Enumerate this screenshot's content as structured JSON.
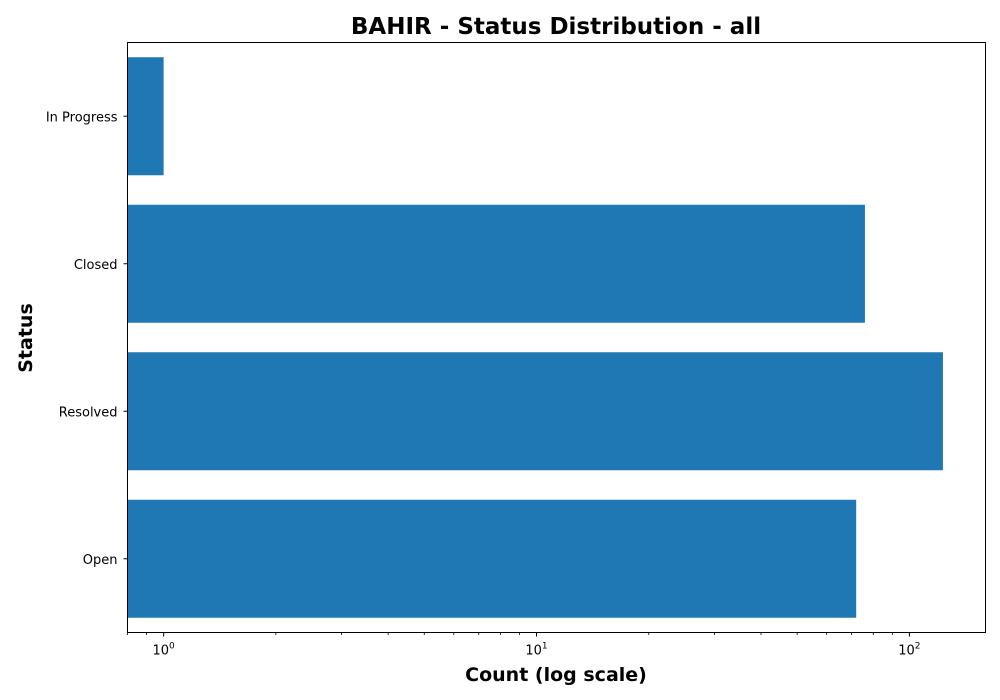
{
  "chart_data": {
    "type": "bar",
    "orientation": "horizontal",
    "title": "BAHIR - Status Distribution - all",
    "xlabel": "Count (log scale)",
    "ylabel": "Status",
    "x_scale": "log",
    "xlim": [
      0.8,
      160
    ],
    "categories": [
      "In Progress",
      "Closed",
      "Resolved",
      "Open"
    ],
    "values": [
      1,
      76,
      123,
      72
    ],
    "x_ticks": [
      {
        "base": "10",
        "exp": "0",
        "value": 1
      },
      {
        "base": "10",
        "exp": "1",
        "value": 10
      },
      {
        "base": "10",
        "exp": "2",
        "value": 100
      }
    ],
    "bar_color": "#1f77b4",
    "grid": false,
    "legend": "none"
  }
}
